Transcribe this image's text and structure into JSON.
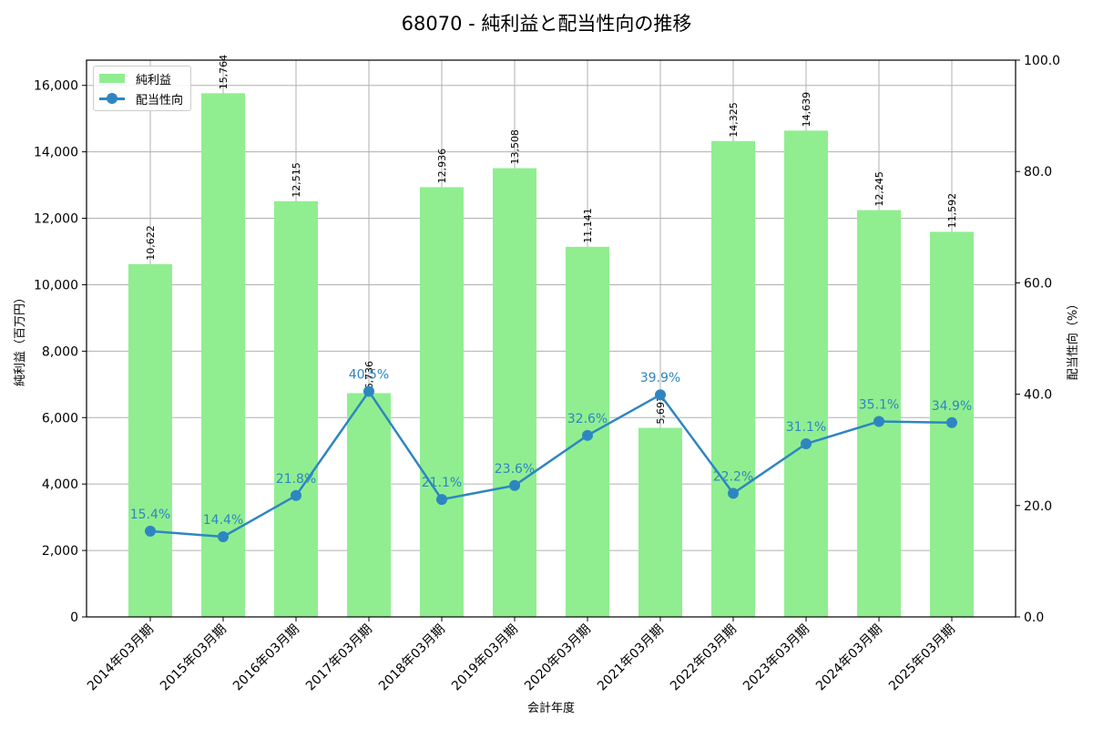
{
  "title": "68070 - 純利益と配当性向の推移",
  "legend": {
    "items": [
      {
        "label": "純利益",
        "type": "bar",
        "color": "#90ee90"
      },
      {
        "label": "配当性向",
        "type": "line",
        "color": "#2e86c1"
      }
    ]
  },
  "axes": {
    "x_label": "会計年度",
    "y_left_label": "純利益（百万円）",
    "y_right_label": "配当性向（%）",
    "y_left_ticks": [
      "0",
      "2,000",
      "4,000",
      "6,000",
      "8,000",
      "10,000",
      "12,000",
      "14,000",
      "16,000"
    ],
    "y_right_ticks": [
      "0.0",
      "20.0",
      "40.0",
      "60.0",
      "80.0",
      "100.0"
    ]
  },
  "chart_data": {
    "type": "bar",
    "title": "68070 - 純利益と配当性向の推移",
    "xlabel": "会計年度",
    "ylabel": "純利益（百万円）",
    "ylabel_right": "配当性向（%）",
    "categories": [
      "2014年03月期",
      "2015年03月期",
      "2016年03月期",
      "2017年03月期",
      "2018年03月期",
      "2019年03月期",
      "2020年03月期",
      "2021年03月期",
      "2022年03月期",
      "2023年03月期",
      "2024年03月期",
      "2025年03月期"
    ],
    "series": [
      {
        "name": "純利益",
        "type": "bar",
        "axis": "left",
        "color": "#90ee90",
        "values": [
          10622,
          15764,
          12515,
          6736,
          12936,
          13508,
          11141,
          5692,
          14325,
          14639,
          12245,
          11592
        ],
        "labels": [
          "10,622",
          "15,764",
          "12,515",
          "6,736",
          "12,936",
          "13,508",
          "11,141",
          "5,692",
          "14,325",
          "14,639",
          "12,245",
          "11,592"
        ]
      },
      {
        "name": "配当性向",
        "type": "line",
        "axis": "right",
        "color": "#2e86c1",
        "values": [
          15.4,
          14.4,
          21.8,
          40.5,
          21.1,
          23.6,
          32.6,
          39.9,
          22.2,
          31.1,
          35.1,
          34.9
        ],
        "labels": [
          "15.4%",
          "14.4%",
          "21.8%",
          "40.5%",
          "21.1%",
          "23.6%",
          "32.6%",
          "39.9%",
          "22.2%",
          "31.1%",
          "35.1%",
          "34.9%"
        ]
      }
    ],
    "ylim": [
      0,
      16760
    ],
    "ylim_right": [
      0,
      100
    ],
    "grid": true,
    "legend_position": "upper left"
  }
}
